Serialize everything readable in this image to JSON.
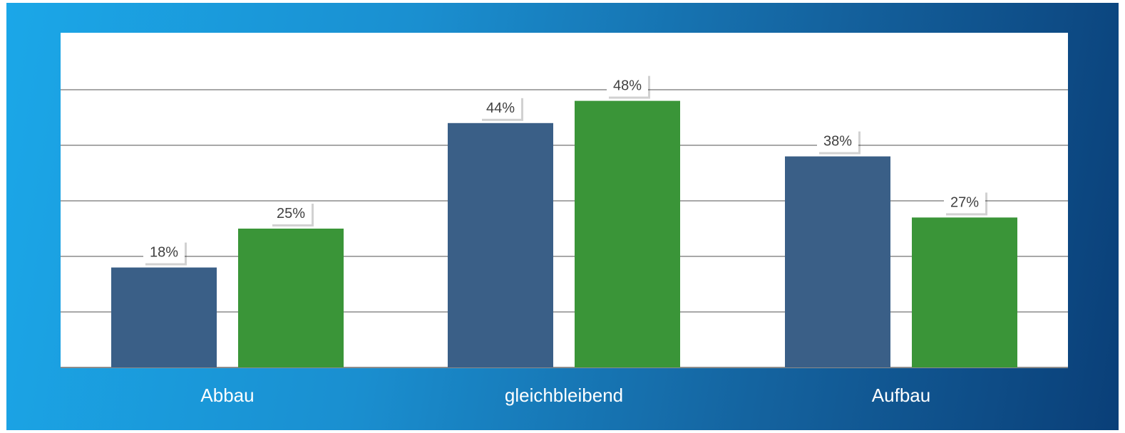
{
  "colors": {
    "series_1": "#3a5f87",
    "series_2": "#3a9538",
    "plot_background": "#ffffff",
    "gridline": "#8c8c8c",
    "category_label": "#ffffff"
  },
  "chart_data": {
    "type": "bar",
    "categories": [
      "Abbau",
      "gleichbleibend",
      "Aufbau"
    ],
    "series": [
      {
        "values": [
          18,
          44,
          38
        ],
        "labels": [
          "18%",
          "44%",
          "38%"
        ]
      },
      {
        "values": [
          25,
          48,
          27
        ],
        "labels": [
          "25%",
          "48%",
          "27%"
        ]
      }
    ],
    "ylim": [
      0,
      60
    ],
    "grid": true,
    "legend": "none"
  }
}
